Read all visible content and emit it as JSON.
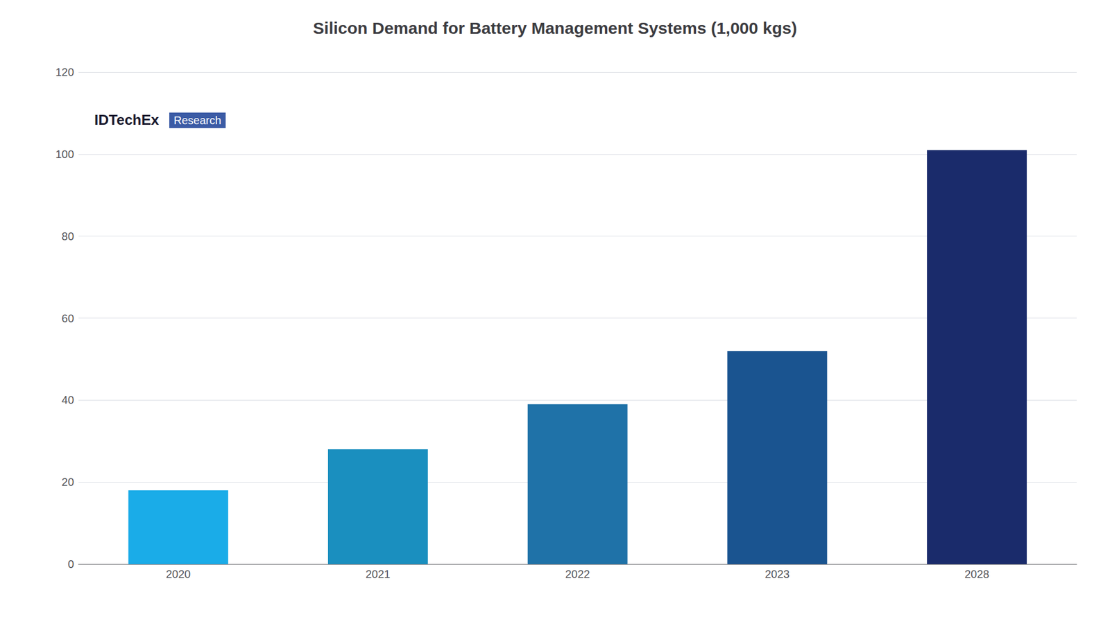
{
  "chart_data": {
    "type": "bar",
    "title": "Silicon Demand for Battery Management Systems (1,000 kgs)",
    "categories": [
      "2020",
      "2021",
      "2022",
      "2023",
      "2028"
    ],
    "values": [
      18,
      28,
      39,
      52,
      101
    ],
    "colors": [
      "#1AACE8",
      "#1A8FBF",
      "#1F72A8",
      "#1A5490",
      "#1A2B6B"
    ],
    "ylim": [
      0,
      120
    ],
    "yticks": [
      0,
      20,
      40,
      60,
      80,
      100,
      120
    ],
    "grid": true,
    "annotations": [
      "IDTechEx",
      "Research"
    ]
  }
}
